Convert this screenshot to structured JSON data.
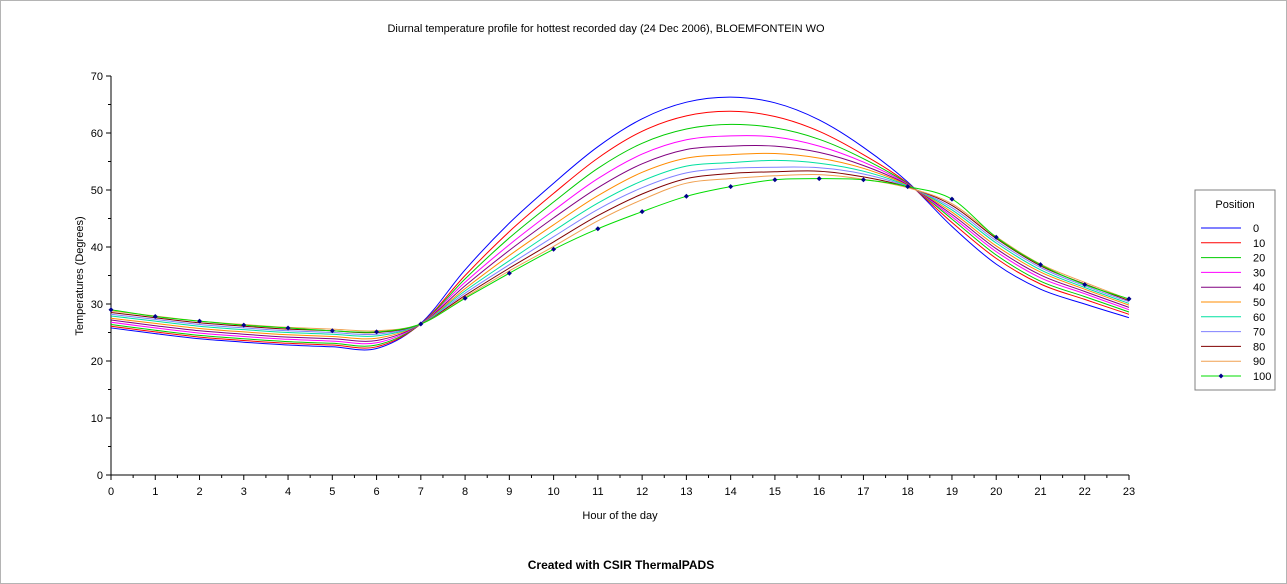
{
  "footer": {
    "caption": "Created with CSIR ThermalPADS"
  },
  "chart_data": {
    "type": "line",
    "title": "Diurnal temperature profile for hottest recorded day (24 Dec 2006), BLOEMFONTEIN WO",
    "xlabel": "Hour of the day",
    "ylabel": "Temperatures (Degrees)",
    "xlim": [
      0,
      23
    ],
    "ylim": [
      0,
      70
    ],
    "x_ticks": [
      0,
      1,
      2,
      3,
      4,
      5,
      6,
      7,
      8,
      9,
      10,
      11,
      12,
      13,
      14,
      15,
      16,
      17,
      18,
      19,
      20,
      21,
      22,
      23
    ],
    "y_ticks": [
      0,
      10,
      20,
      30,
      40,
      50,
      60,
      70
    ],
    "grid": false,
    "legend": {
      "title": "Position",
      "placement": "right"
    },
    "x": [
      0,
      1,
      2,
      3,
      4,
      5,
      6,
      7,
      8,
      9,
      10,
      11,
      12,
      13,
      14,
      15,
      16,
      17,
      18,
      19,
      20,
      21,
      22,
      23
    ],
    "series": [
      {
        "name": "0",
        "color": "#0000ff",
        "marker": "none",
        "values": [
          25.8,
          24.8,
          23.9,
          23.3,
          22.8,
          22.5,
          22.2,
          26.6,
          36.0,
          44.2,
          51.2,
          57.6,
          62.5,
          65.4,
          66.3,
          65.3,
          62.3,
          57.5,
          51.4,
          43.6,
          37.0,
          32.6,
          30.0,
          27.6
        ]
      },
      {
        "name": "10",
        "color": "#ff0000",
        "marker": "none",
        "values": [
          26.1,
          25.1,
          24.2,
          23.6,
          23.1,
          22.8,
          22.5,
          26.5,
          35.0,
          42.7,
          49.4,
          55.6,
          60.3,
          63.0,
          63.8,
          62.9,
          60.3,
          56.2,
          51.2,
          44.3,
          38.0,
          33.5,
          30.8,
          28.2
        ]
      },
      {
        "name": "20",
        "color": "#00cc00",
        "marker": "none",
        "values": [
          26.4,
          25.4,
          24.5,
          23.9,
          23.4,
          23.1,
          22.8,
          26.5,
          34.4,
          41.6,
          47.9,
          53.8,
          58.2,
          60.7,
          61.5,
          60.9,
          58.9,
          55.5,
          51.1,
          44.9,
          38.6,
          34.0,
          31.3,
          28.6
        ]
      },
      {
        "name": "30",
        "color": "#ff00ff",
        "marker": "none",
        "values": [
          26.8,
          25.8,
          24.9,
          24.3,
          23.8,
          23.5,
          23.2,
          26.5,
          33.8,
          40.4,
          46.4,
          52.0,
          56.3,
          58.8,
          59.5,
          59.3,
          57.7,
          54.9,
          51.0,
          45.3,
          39.2,
          34.6,
          31.8,
          29.0
        ]
      },
      {
        "name": "40",
        "color": "#800080",
        "marker": "none",
        "values": [
          27.2,
          26.2,
          25.3,
          24.7,
          24.2,
          23.9,
          23.6,
          26.5,
          33.2,
          39.4,
          45.1,
          50.4,
          54.6,
          57.1,
          57.7,
          57.7,
          56.6,
          54.3,
          50.9,
          45.7,
          39.7,
          35.1,
          32.2,
          29.4
        ]
      },
      {
        "name": "50",
        "color": "#ff8c00",
        "marker": "none",
        "values": [
          27.5,
          26.6,
          25.7,
          25.1,
          24.6,
          24.3,
          24.0,
          26.5,
          32.7,
          38.5,
          43.9,
          49.0,
          53.1,
          55.6,
          56.2,
          56.4,
          55.6,
          53.8,
          50.8,
          46.1,
          40.2,
          35.6,
          32.6,
          29.8
        ]
      },
      {
        "name": "60",
        "color": "#00e0a0",
        "marker": "none",
        "values": [
          27.9,
          27.0,
          26.1,
          25.5,
          25.0,
          24.7,
          24.4,
          26.5,
          32.3,
          37.6,
          42.8,
          47.7,
          51.6,
          54.2,
          54.8,
          55.2,
          54.7,
          53.3,
          50.7,
          46.5,
          40.7,
          36.0,
          32.9,
          30.1
        ]
      },
      {
        "name": "70",
        "color": "#8080ff",
        "marker": "none",
        "values": [
          28.2,
          27.3,
          26.4,
          25.8,
          25.3,
          25.0,
          24.7,
          26.5,
          31.9,
          36.9,
          41.8,
          46.6,
          50.4,
          53.0,
          53.8,
          54.0,
          53.9,
          52.8,
          50.6,
          46.9,
          41.1,
          36.4,
          33.2,
          30.4
        ]
      },
      {
        "name": "80",
        "color": "#800000",
        "marker": "none",
        "values": [
          28.5,
          27.6,
          26.7,
          26.1,
          25.6,
          25.3,
          25.0,
          26.5,
          31.5,
          36.3,
          40.9,
          45.5,
          49.3,
          52.0,
          52.9,
          53.2,
          53.3,
          52.3,
          50.5,
          47.3,
          41.5,
          36.7,
          33.5,
          30.6
        ]
      },
      {
        "name": "90",
        "color": "#f0a050",
        "marker": "none",
        "values": [
          28.8,
          27.9,
          27.0,
          26.4,
          25.9,
          25.6,
          25.3,
          26.5,
          31.2,
          35.8,
          40.1,
          44.6,
          48.3,
          51.2,
          52.0,
          52.5,
          52.7,
          51.9,
          50.4,
          47.6,
          41.8,
          37.0,
          33.8,
          30.8
        ]
      },
      {
        "name": "100",
        "color": "#00dd00",
        "marker": "diamond",
        "marker_color": "#00008b",
        "values": [
          29.0,
          27.8,
          27.0,
          26.3,
          25.8,
          25.3,
          25.1,
          26.5,
          31.0,
          35.4,
          39.6,
          43.2,
          46.2,
          48.9,
          50.6,
          51.8,
          52.0,
          51.8,
          50.6,
          48.4,
          41.7,
          36.9,
          33.4,
          30.9
        ]
      }
    ]
  }
}
